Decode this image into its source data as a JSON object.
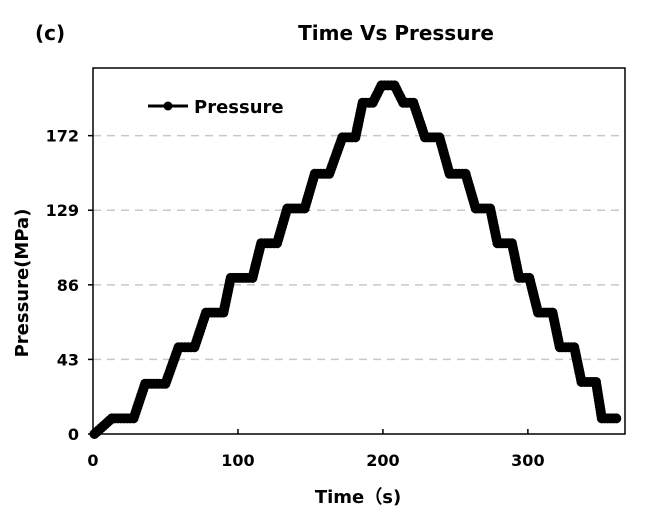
{
  "panel_label": "(c)",
  "chart_data": {
    "type": "line",
    "title": "Time Vs Pressure",
    "xlabel": "Time（s)",
    "ylabel": "Pressure(MPa)",
    "xlim": [
      0,
      367
    ],
    "ylim": [
      0,
      211
    ],
    "x_ticks": [
      0,
      100,
      200,
      300
    ],
    "y_ticks": [
      0,
      43,
      86,
      129,
      172
    ],
    "grid": "horizontal dashed",
    "legend": "top-left",
    "series": [
      {
        "name": "Pressure",
        "color": "#000000",
        "marker": "circle",
        "x": [
          1,
          13,
          28,
          36,
          50,
          59,
          70,
          78,
          90,
          95,
          110,
          116,
          127,
          134,
          146,
          153,
          163,
          172,
          181,
          186,
          193,
          199,
          208,
          214,
          221,
          229,
          239,
          246,
          257,
          264,
          274,
          279,
          289,
          294,
          301,
          307,
          317,
          322,
          332,
          337,
          347,
          351,
          361
        ],
        "y": [
          0,
          9,
          9,
          29,
          29,
          50,
          50,
          70,
          70,
          90,
          90,
          110,
          110,
          130,
          130,
          150,
          150,
          171,
          171,
          191,
          191,
          201,
          201,
          191,
          191,
          171,
          171,
          150,
          150,
          130,
          130,
          110,
          110,
          90,
          90,
          70,
          70,
          50,
          50,
          30,
          30,
          9,
          9
        ]
      }
    ]
  }
}
